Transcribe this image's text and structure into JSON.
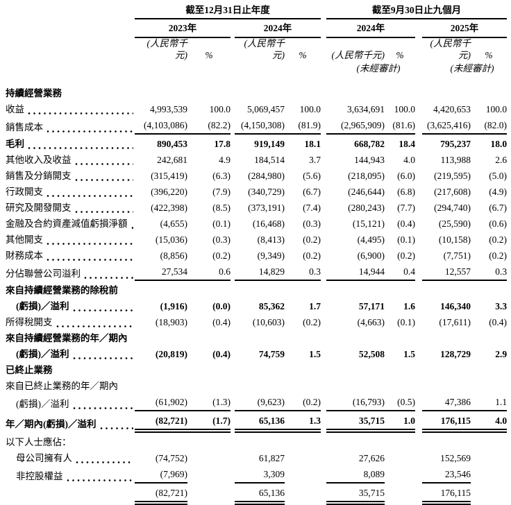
{
  "document": {
    "kind": "consolidated-income-statement-table",
    "background_color": "#ffffff",
    "text_color": "#000000",
    "rule_color": "#000000"
  },
  "header": {
    "period_groups": [
      "截至12月31日止年度",
      "截至9月30日止九個月"
    ],
    "year_columns": [
      "2023年",
      "2024年",
      "2024年",
      "2025年"
    ],
    "unit_label": "(人民幣千元)",
    "percent_label": "%",
    "unaudited_label": "(未經審計)"
  },
  "rows": [
    {
      "label": "持續經營業務",
      "section": true,
      "bold": true,
      "first": true
    },
    {
      "label": "收益",
      "dots": true,
      "values": [
        "4,993,539",
        "100.0",
        "5,069,457",
        "100.0",
        "3,634,691",
        "100.0",
        "4,420,653",
        "100.0"
      ]
    },
    {
      "label": "銷售成本",
      "dots": true,
      "rule": "single",
      "values": [
        "(4,103,086)",
        "(82.2)",
        "(4,150,308)",
        "(81.9)",
        "(2,965,909)",
        "(81.6)",
        "(3,625,416)",
        "(82.0)"
      ]
    },
    {
      "label": "毛利",
      "dots": true,
      "bold": true,
      "values": [
        "890,453",
        "17.8",
        "919,149",
        "18.1",
        "668,782",
        "18.4",
        "795,237",
        "18.0"
      ]
    },
    {
      "label": "其他收入及收益",
      "dots": true,
      "values": [
        "242,681",
        "4.9",
        "184,514",
        "3.7",
        "144,943",
        "4.0",
        "113,988",
        "2.6"
      ]
    },
    {
      "label": "銷售及分銷開支",
      "dots": true,
      "values": [
        "(315,419)",
        "(6.3)",
        "(284,980)",
        "(5.6)",
        "(218,095)",
        "(6.0)",
        "(219,595)",
        "(5.0)"
      ]
    },
    {
      "label": "行政開支",
      "dots": true,
      "values": [
        "(396,220)",
        "(7.9)",
        "(340,729)",
        "(6.7)",
        "(246,644)",
        "(6.8)",
        "(217,608)",
        "(4.9)"
      ]
    },
    {
      "label": "研究及開發開支",
      "dots": true,
      "values": [
        "(422,398)",
        "(8.5)",
        "(373,191)",
        "(7.4)",
        "(280,243)",
        "(7.7)",
        "(294,740)",
        "(6.7)"
      ]
    },
    {
      "label": "金融及合約資產減值虧損淨額",
      "dots": true,
      "values": [
        "(4,655)",
        "(0.1)",
        "(16,468)",
        "(0.3)",
        "(15,121)",
        "(0.4)",
        "(25,590)",
        "(0.6)"
      ]
    },
    {
      "label": "其他開支",
      "dots": true,
      "values": [
        "(15,036)",
        "(0.3)",
        "(8,413)",
        "(0.2)",
        "(4,495)",
        "(0.1)",
        "(10,158)",
        "(0.2)"
      ]
    },
    {
      "label": "財務成本",
      "dots": true,
      "values": [
        "(8,856)",
        "(0.2)",
        "(9,349)",
        "(0.2)",
        "(6,900)",
        "(0.2)",
        "(7,751)",
        "(0.2)"
      ]
    },
    {
      "label": "分佔聯營公司溢利",
      "dots": true,
      "rule": "single",
      "values": [
        "27,534",
        "0.6",
        "14,829",
        "0.3",
        "14,944",
        "0.4",
        "12,557",
        "0.3"
      ]
    },
    {
      "label": "來自持續經營業務的除稅前",
      "section": true,
      "bold": true
    },
    {
      "label": "(虧損)／溢利",
      "indent": true,
      "bold": true,
      "dots": true,
      "values": [
        "(1,916)",
        "(0.0)",
        "85,362",
        "1.7",
        "57,171",
        "1.6",
        "146,340",
        "3.3"
      ]
    },
    {
      "label": "所得稅開支",
      "dots": true,
      "values": [
        "(18,903)",
        "(0.4)",
        "(10,603)",
        "(0.2)",
        "(4,663)",
        "(0.1)",
        "(17,611)",
        "(0.4)"
      ]
    },
    {
      "label": "來自持續經營業務的年／期內",
      "section": true,
      "bold": true
    },
    {
      "label": "(虧損)／溢利",
      "indent": true,
      "bold": true,
      "dots": true,
      "values": [
        "(20,819)",
        "(0.4)",
        "74,759",
        "1.5",
        "52,508",
        "1.5",
        "128,729",
        "2.9"
      ]
    },
    {
      "label": "已終止業務",
      "section": true,
      "bold": true
    },
    {
      "label": "來自已終止業務的年／期內",
      "section": true
    },
    {
      "label": "(虧損)／溢利",
      "indent": true,
      "dots": true,
      "rule": "single",
      "values": [
        "(61,902)",
        "(1.3)",
        "(9,623)",
        "(0.2)",
        "(16,793)",
        "(0.5)",
        "47,386",
        "1.1"
      ]
    },
    {
      "label": "年／期內(虧損)／溢利",
      "bold": true,
      "dots": true,
      "rule": "double",
      "values": [
        "(82,721)",
        "(1.7)",
        "65,136",
        "1.3",
        "35,715",
        "1.0",
        "176,115",
        "4.0"
      ]
    },
    {
      "label": "以下人士應佔：",
      "section": true
    },
    {
      "label": "母公司擁有人",
      "indent": true,
      "dots": true,
      "values": [
        "(74,752)",
        "",
        "61,827",
        "",
        "27,626",
        "",
        "152,569",
        ""
      ]
    },
    {
      "label": "非控股權益",
      "indent": true,
      "dots": true,
      "rule": "single",
      "values": [
        "(7,969)",
        "",
        "3,309",
        "",
        "8,089",
        "",
        "23,546",
        ""
      ]
    },
    {
      "label": "",
      "rule": "double",
      "values": [
        "(82,721)",
        "",
        "65,136",
        "",
        "35,715",
        "",
        "176,115",
        ""
      ]
    }
  ]
}
